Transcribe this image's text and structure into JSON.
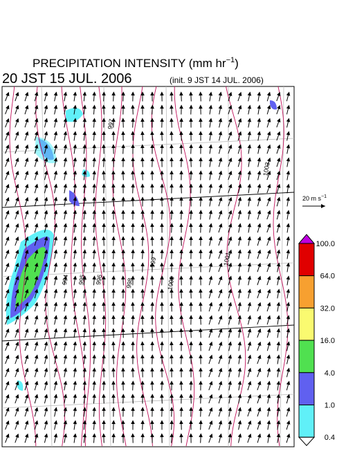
{
  "header": {
    "title_main": "PRECIPITATION INTENSITY (mm hr",
    "title_sup": "−1",
    "title_end": ")",
    "valid_time": "20 JST 15 JUL. 2006",
    "init_time": "(init. 9 JST 14 JUL. 2006)"
  },
  "reference_vector": {
    "label_main": "20 m s",
    "label_sup": "−1"
  },
  "colorbar": [
    {
      "label": "100.0",
      "color": "#e00000"
    },
    {
      "label": "64.0",
      "color": "#f7a030"
    },
    {
      "label": "32.0",
      "color": "#fafa70"
    },
    {
      "label": "16.0",
      "color": "#50e050"
    },
    {
      "label": "4.0",
      "color": "#6060f0"
    },
    {
      "label": "1.0",
      "color": "#60f0f8"
    },
    {
      "label": "0.4",
      "color": "#ffffff"
    }
  ],
  "colorbar_over_color": "#c000e0",
  "contour_labels": [
    "997",
    "994",
    "995",
    "996",
    "998",
    "999",
    "1000",
    "1001",
    "1003"
  ]
}
